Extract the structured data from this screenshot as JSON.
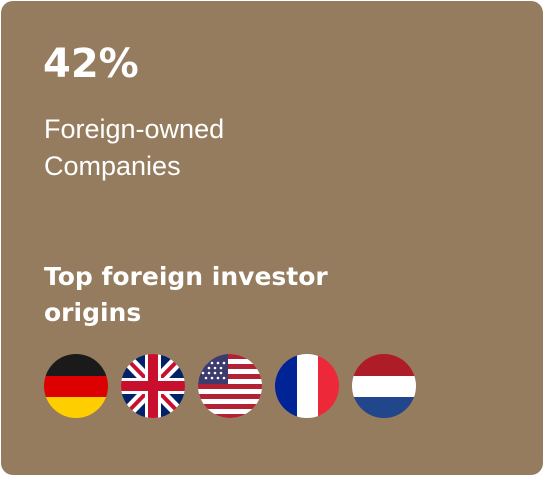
{
  "stat": {
    "value": "42%",
    "label": [
      "Foreign-owned",
      "Companies"
    ]
  },
  "section": {
    "heading": [
      "Top foreign investor",
      "origins"
    ]
  }
}
